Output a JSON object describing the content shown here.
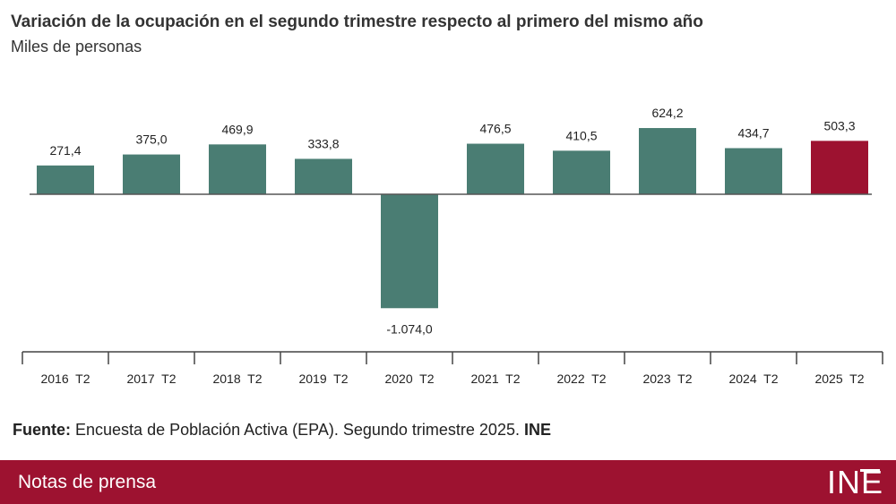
{
  "header": {
    "title": "Variación de la ocupación en el segundo trimestre respecto al primero del mismo año",
    "subtitle": "Miles de personas"
  },
  "source": {
    "label": "Fuente:",
    "text": "Encuesta de Población Activa (EPA). Segundo trimestre 2025.",
    "org": "INE"
  },
  "footer": {
    "label": "Notas de prensa",
    "logo_text": "INE"
  },
  "colors": {
    "bar": "#4a7d73",
    "highlight": "#9d1230",
    "footer": "#9d1230"
  },
  "chart_data": {
    "type": "bar",
    "categories": [
      "2016  T2",
      "2017  T2",
      "2018  T2",
      "2019  T2",
      "2020  T2",
      "2021  T2",
      "2022  T2",
      "2023  T2",
      "2024  T2",
      "2025  T2"
    ],
    "values": [
      271.4,
      375.0,
      469.9,
      333.8,
      -1074.0,
      476.5,
      410.5,
      624.2,
      434.7,
      503.3
    ],
    "labels": [
      "271,4",
      "375,0",
      "469,9",
      "333,8",
      "-1.074,0",
      "476,5",
      "410,5",
      "624,2",
      "434,7",
      "503,3"
    ],
    "highlight_index": 9,
    "title": "Variación de la ocupación en el segundo trimestre respecto al primero del mismo año",
    "ylabel": "Miles de personas",
    "xlabel": "",
    "ylim": [
      -1400,
      900
    ],
    "grid": false
  }
}
